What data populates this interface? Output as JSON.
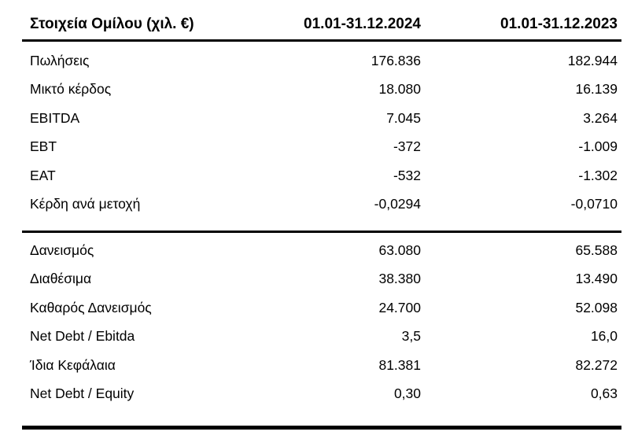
{
  "table": {
    "title": "Στοιχεία Ομίλου (χιλ. €)",
    "col_2024": "01.01-31.12.2024",
    "col_2023": "01.01-31.12.2023",
    "sections": [
      {
        "rows": [
          {
            "label": "Πωλήσεις",
            "v2024": "176.836",
            "v2023": "182.944"
          },
          {
            "label": "Μικτό κέρδος",
            "v2024": "18.080",
            "v2023": "16.139"
          },
          {
            "label": "EBITDA",
            "v2024": "7.045",
            "v2023": "3.264"
          },
          {
            "label": "EBT",
            "v2024": "-372",
            "v2023": "-1.009"
          },
          {
            "label": "EAT",
            "v2024": "-532",
            "v2023": "-1.302"
          },
          {
            "label": "Κέρδη ανά μετοχή",
            "v2024": "-0,0294",
            "v2023": "-0,0710"
          }
        ]
      },
      {
        "rows": [
          {
            "label": "Δανεισμός",
            "v2024": "63.080",
            "v2023": "65.588"
          },
          {
            "label": "Διαθέσιμα",
            "v2024": "38.380",
            "v2023": "13.490"
          },
          {
            "label": "Καθαρός Δανεισμός",
            "v2024": "24.700",
            "v2023": "52.098"
          },
          {
            "label": "Net Debt / Ebitda",
            "v2024": "3,5",
            "v2023": "16,0"
          },
          {
            "label": "Ίδια Κεφάλαια",
            "v2024": "81.381",
            "v2023": "82.272"
          },
          {
            "label": "Net Debt / Equity",
            "v2024": "0,30",
            "v2023": "0,63"
          }
        ]
      }
    ]
  },
  "colors": {
    "text": "#000000",
    "rule": "#000000",
    "background": "#ffffff"
  }
}
